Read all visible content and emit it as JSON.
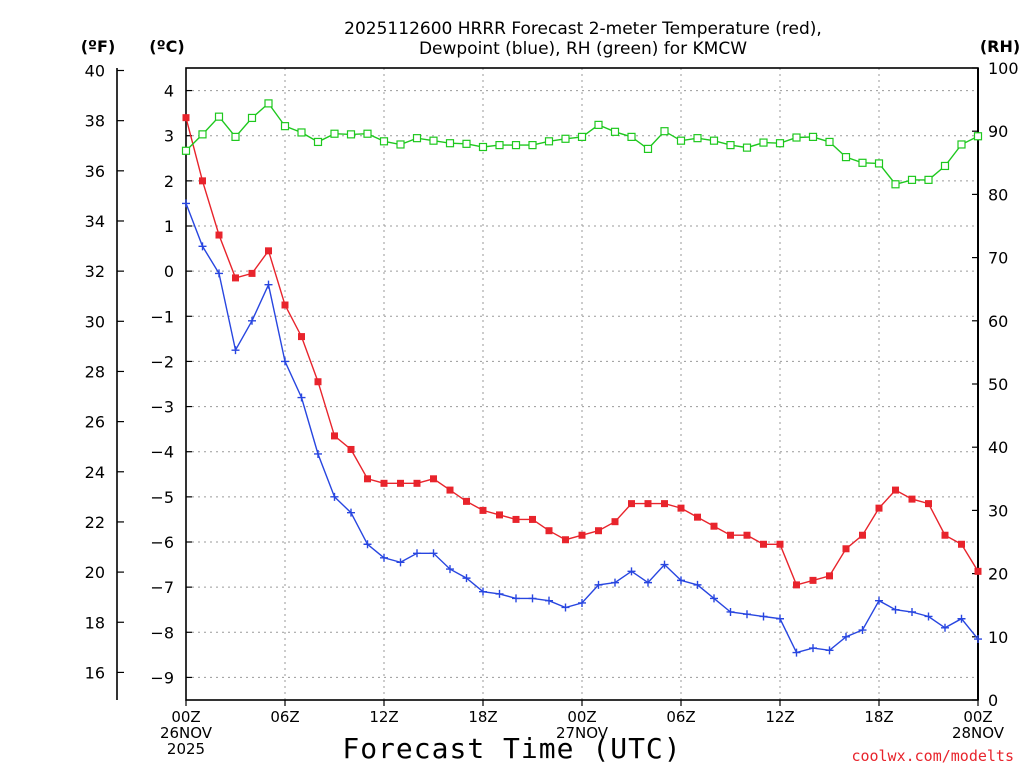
{
  "chart_data": {
    "type": "line",
    "title": [
      "2025112600 HRRR Forecast 2-meter Temperature (red),",
      "Dewpoint (blue), RH (green) for KMCW"
    ],
    "xlabel": "Forecast Time (UTC)",
    "left_unit_f": "(ºF)",
    "left_unit_c": "(ºC)",
    "right_unit": "(RH)",
    "credit": "coolwx.com/modelts",
    "forecast_hours": [
      0,
      1,
      2,
      3,
      4,
      5,
      6,
      7,
      8,
      9,
      10,
      11,
      12,
      13,
      14,
      15,
      16,
      17,
      18,
      19,
      20,
      21,
      22,
      23,
      24,
      25,
      26,
      27,
      28,
      29,
      30,
      31,
      32,
      33,
      34,
      35,
      36,
      37,
      38,
      39,
      40,
      41,
      42,
      43,
      44,
      45,
      46,
      47,
      48
    ],
    "x_ticks": [
      {
        "hour": 0,
        "lines": [
          "00Z",
          "26NOV",
          "2025"
        ]
      },
      {
        "hour": 6,
        "lines": [
          "06Z"
        ]
      },
      {
        "hour": 12,
        "lines": [
          "12Z"
        ]
      },
      {
        "hour": 18,
        "lines": [
          "18Z"
        ]
      },
      {
        "hour": 24,
        "lines": [
          "00Z",
          "27NOV"
        ]
      },
      {
        "hour": 30,
        "lines": [
          "06Z"
        ]
      },
      {
        "hour": 36,
        "lines": [
          "12Z"
        ]
      },
      {
        "hour": 42,
        "lines": [
          "18Z"
        ]
      },
      {
        "hour": 48,
        "lines": [
          "00Z",
          "28NOV"
        ]
      }
    ],
    "xlim": [
      0,
      48
    ],
    "celsius_axis": {
      "ylim": [
        -9.5,
        4.5
      ],
      "ticks": [
        4,
        3,
        2,
        1,
        0,
        -1,
        -2,
        -3,
        -4,
        -5,
        -6,
        -7,
        -8,
        -9
      ]
    },
    "fahrenheit_axis": {
      "ticks": [
        40,
        38,
        36,
        34,
        32,
        30,
        28,
        26,
        24,
        22,
        20,
        18,
        16
      ]
    },
    "rh_axis": {
      "ylim": [
        0,
        100
      ],
      "ticks": [
        100,
        90,
        80,
        70,
        60,
        50,
        40,
        30,
        20,
        10,
        0
      ]
    },
    "series": [
      {
        "name": "Temperature",
        "units": "degC",
        "color": "#e8242c",
        "marker": "filled-square",
        "values": [
          3.4,
          2.0,
          0.8,
          -0.15,
          -0.05,
          0.45,
          -0.75,
          -1.45,
          -2.45,
          -3.65,
          -3.95,
          -4.6,
          -4.7,
          -4.7,
          -4.7,
          -4.6,
          -4.85,
          -5.1,
          -5.3,
          -5.4,
          -5.5,
          -5.5,
          -5.75,
          -5.95,
          -5.85,
          -5.75,
          -5.55,
          -5.15,
          -5.15,
          -5.15,
          -5.25,
          -5.45,
          -5.65,
          -5.85,
          -5.85,
          -6.05,
          -6.05,
          -6.95,
          -6.85,
          -6.75,
          -6.15,
          -5.85,
          -5.25,
          -4.85,
          -5.05,
          -5.15,
          -5.85,
          -6.05,
          -6.65
        ]
      },
      {
        "name": "Dewpoint",
        "units": "degC",
        "color": "#2846e0",
        "marker": "plus",
        "values": [
          1.5,
          0.55,
          -0.05,
          -1.75,
          -1.1,
          -0.3,
          -2.0,
          -2.8,
          -4.05,
          -5.0,
          -5.35,
          -6.05,
          -6.35,
          -6.45,
          -6.25,
          -6.25,
          -6.6,
          -6.8,
          -7.1,
          -7.15,
          -7.25,
          -7.25,
          -7.3,
          -7.45,
          -7.35,
          -6.95,
          -6.9,
          -6.65,
          -6.9,
          -6.5,
          -6.85,
          -6.95,
          -7.25,
          -7.55,
          -7.6,
          -7.65,
          -7.7,
          -8.45,
          -8.35,
          -8.4,
          -8.1,
          -7.95,
          -7.3,
          -7.5,
          -7.55,
          -7.65,
          -7.9,
          -7.7,
          -8.15
        ]
      },
      {
        "name": "RH",
        "units": "percent",
        "color": "#1ec81e",
        "marker": "open-square",
        "values": [
          86.9,
          89.5,
          92.3,
          89.1,
          92.1,
          94.4,
          90.8,
          89.8,
          88.3,
          89.6,
          89.5,
          89.6,
          88.4,
          87.9,
          88.9,
          88.5,
          88.1,
          88.0,
          87.5,
          87.8,
          87.8,
          87.8,
          88.4,
          88.8,
          89.1,
          91.0,
          89.9,
          89.1,
          87.2,
          90.0,
          88.5,
          88.9,
          88.5,
          87.8,
          87.4,
          88.2,
          88.1,
          89.0,
          89.1,
          88.3,
          85.9,
          85.0,
          84.9,
          81.6,
          82.3,
          82.3,
          84.5,
          87.9,
          89.2
        ]
      }
    ]
  }
}
